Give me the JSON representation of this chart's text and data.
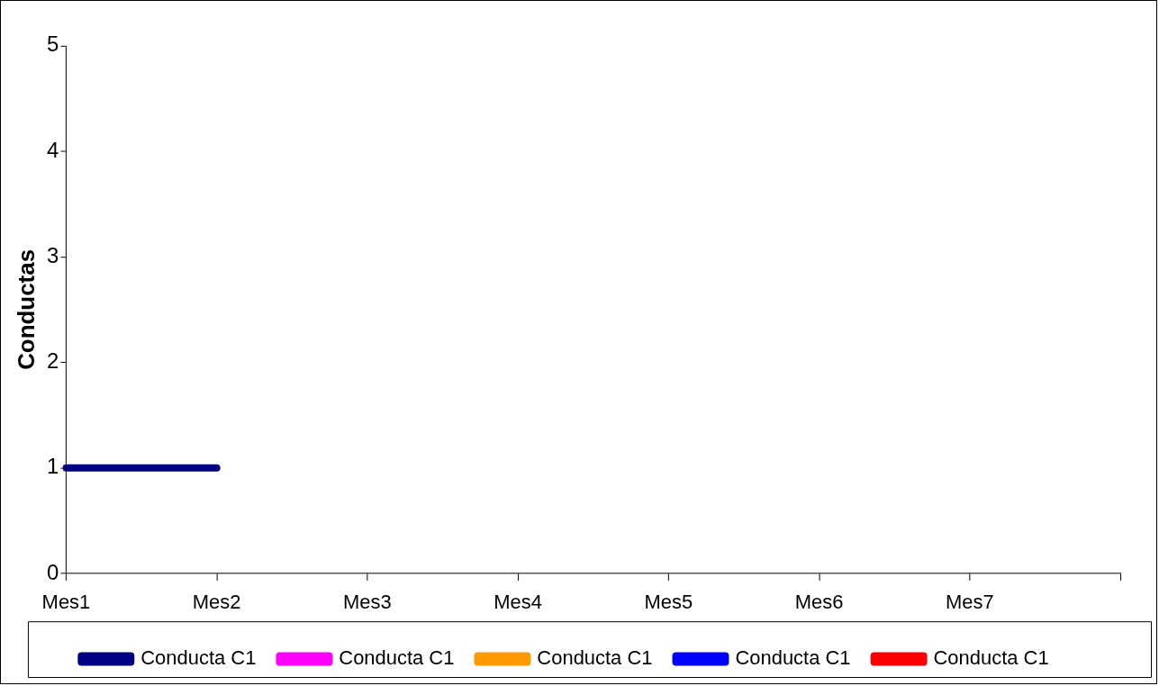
{
  "chart_data": {
    "type": "line",
    "ylabel": "Conductas",
    "categories": [
      "Mes1",
      "Mes2",
      "Mes3",
      "Mes4",
      "Mes5",
      "Mes6",
      "Mes7",
      null
    ],
    "series": [
      {
        "name": "Conducta C1",
        "color": "#000080",
        "values": [
          1,
          1,
          null,
          null,
          null,
          null,
          null,
          null
        ]
      },
      {
        "name": "Conducta C1",
        "color": "#ff00ff",
        "values": [
          null,
          null,
          null,
          null,
          null,
          null,
          null,
          null
        ]
      },
      {
        "name": "Conducta C1",
        "color": "#ff9900",
        "values": [
          null,
          null,
          null,
          null,
          null,
          null,
          null,
          null
        ]
      },
      {
        "name": "Conducta C1",
        "color": "#0000ff",
        "values": [
          null,
          null,
          null,
          null,
          null,
          null,
          null,
          null
        ]
      },
      {
        "name": "Conducta C1",
        "color": "#ff0000",
        "values": [
          null,
          null,
          null,
          null,
          null,
          null,
          null,
          null
        ]
      }
    ],
    "ylim": [
      0,
      5
    ],
    "yticks": [
      0,
      1,
      2,
      3,
      4,
      5
    ],
    "grid": false,
    "legend": "bottom",
    "marker": "none",
    "line_style": "solid"
  }
}
